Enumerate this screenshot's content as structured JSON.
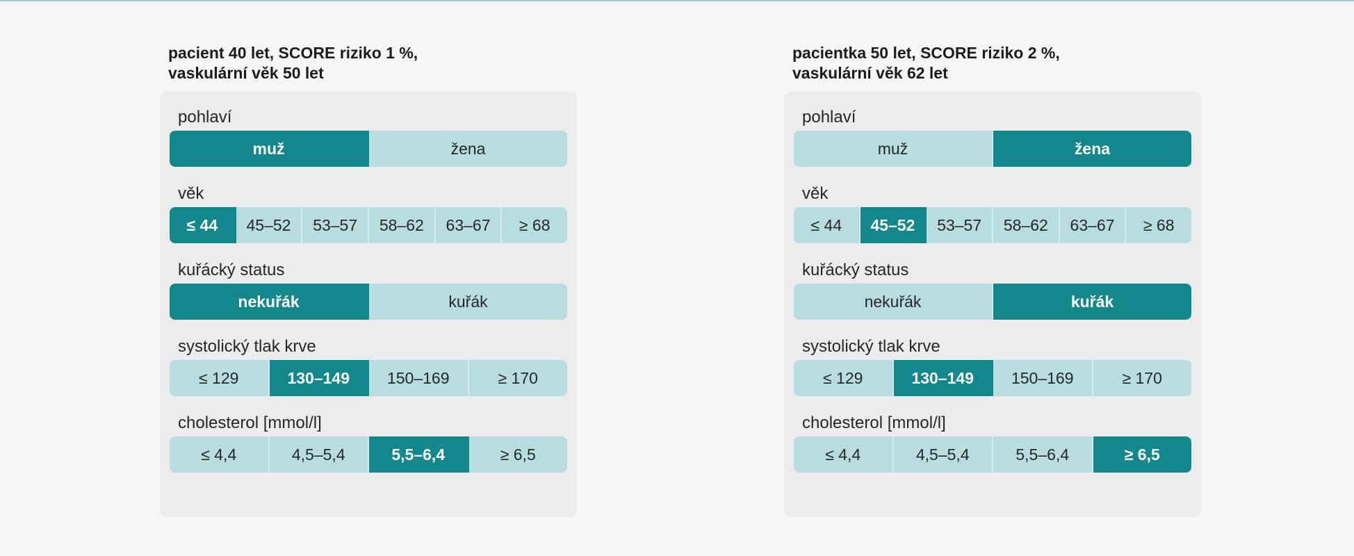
{
  "panels": [
    {
      "caption": "pacient 40 let, SCORE riziko 1 %,\nvaskulární věk 50 let",
      "groups": [
        {
          "label": "pohlaví",
          "options": [
            "muž",
            "žena"
          ],
          "selected": 0
        },
        {
          "label": "věk",
          "options": [
            "≤ 44",
            "45–52",
            "53–57",
            "58–62",
            "63–67",
            "≥ 68"
          ],
          "selected": 0
        },
        {
          "label": "kuřácký status",
          "options": [
            "nekuřák",
            "kuřák"
          ],
          "selected": 0
        },
        {
          "label": "systolický tlak krve",
          "options": [
            "≤ 129",
            "130–149",
            "150–169",
            "≥ 170"
          ],
          "selected": 1
        },
        {
          "label": "cholesterol [mmol/l]",
          "options": [
            "≤ 4,4",
            "4,5–5,4",
            "5,5–6,4",
            "≥ 6,5"
          ],
          "selected": 2
        }
      ]
    },
    {
      "caption": "pacientka 50 let, SCORE riziko 2 %,\nvaskulární věk 62 let",
      "groups": [
        {
          "label": "pohlaví",
          "options": [
            "muž",
            "žena"
          ],
          "selected": 1
        },
        {
          "label": "věk",
          "options": [
            "≤ 44",
            "45–52",
            "53–57",
            "58–62",
            "63–67",
            "≥ 68"
          ],
          "selected": 1
        },
        {
          "label": "kuřácký status",
          "options": [
            "nekuřák",
            "kuřák"
          ],
          "selected": 1
        },
        {
          "label": "systolický tlak krve",
          "options": [
            "≤ 129",
            "130–149",
            "150–169",
            "≥ 170"
          ],
          "selected": 1
        },
        {
          "label": "cholesterol [mmol/l]",
          "options": [
            "≤ 4,4",
            "4,5–5,4",
            "5,5–6,4",
            "≥ 6,5"
          ],
          "selected": 3
        }
      ]
    }
  ],
  "colors": {
    "selected": "#13888c",
    "unselected": "#b7dde0",
    "card": "#ececec"
  }
}
